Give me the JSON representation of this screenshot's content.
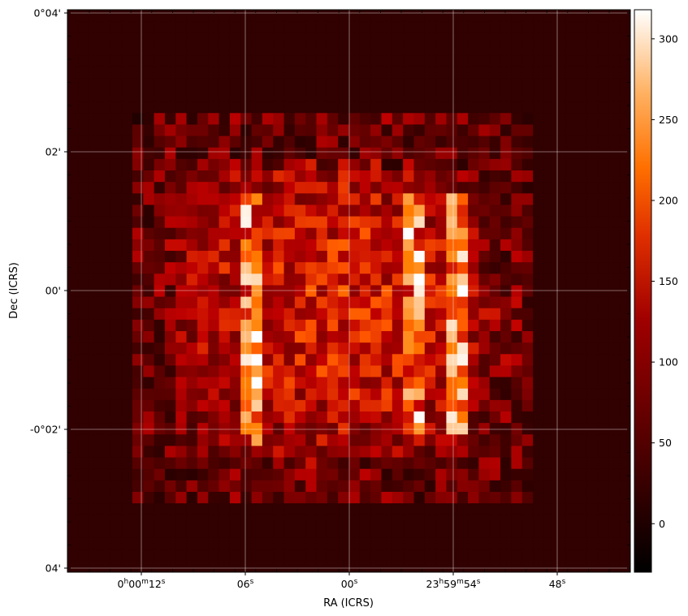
{
  "chart_data": {
    "type": "heatmap",
    "title": "",
    "xlabel": "RA (ICRS)",
    "ylabel": "Dec (ICRS)",
    "colormap": "gist_heat",
    "color_range": [
      -30,
      318
    ],
    "grid": true,
    "grid_color": "#ffffff",
    "x_ticks": [
      {
        "parts": [
          {
            "t": "0"
          },
          {
            "t": "h",
            "sup": true
          },
          {
            "t": "00"
          },
          {
            "t": "m",
            "sup": true
          },
          {
            "t": "12"
          },
          {
            "t": "s",
            "sup": true
          }
        ]
      },
      {
        "parts": [
          {
            "t": "06"
          },
          {
            "t": "s",
            "sup": true
          }
        ]
      },
      {
        "parts": [
          {
            "t": "00"
          },
          {
            "t": "s",
            "sup": true
          }
        ]
      },
      {
        "parts": [
          {
            "t": "23"
          },
          {
            "t": "h",
            "sup": true
          },
          {
            "t": "59"
          },
          {
            "t": "m",
            "sup": true
          },
          {
            "t": "54"
          },
          {
            "t": "s",
            "sup": true
          }
        ]
      },
      {
        "parts": [
          {
            "t": "48"
          },
          {
            "t": "s",
            "sup": true
          }
        ]
      }
    ],
    "y_ticks": [
      "0°04'",
      "02'",
      "00'",
      "-0°02'",
      "04'"
    ],
    "colorbar": {
      "ticks": [
        0,
        50,
        100,
        150,
        200,
        250,
        300
      ]
    },
    "data_region": {
      "ra_cols_approx": 52,
      "dec_rows_approx": 49,
      "description_values": {
        "background": 15,
        "interior_mean": 140,
        "peak": 318
      }
    }
  }
}
